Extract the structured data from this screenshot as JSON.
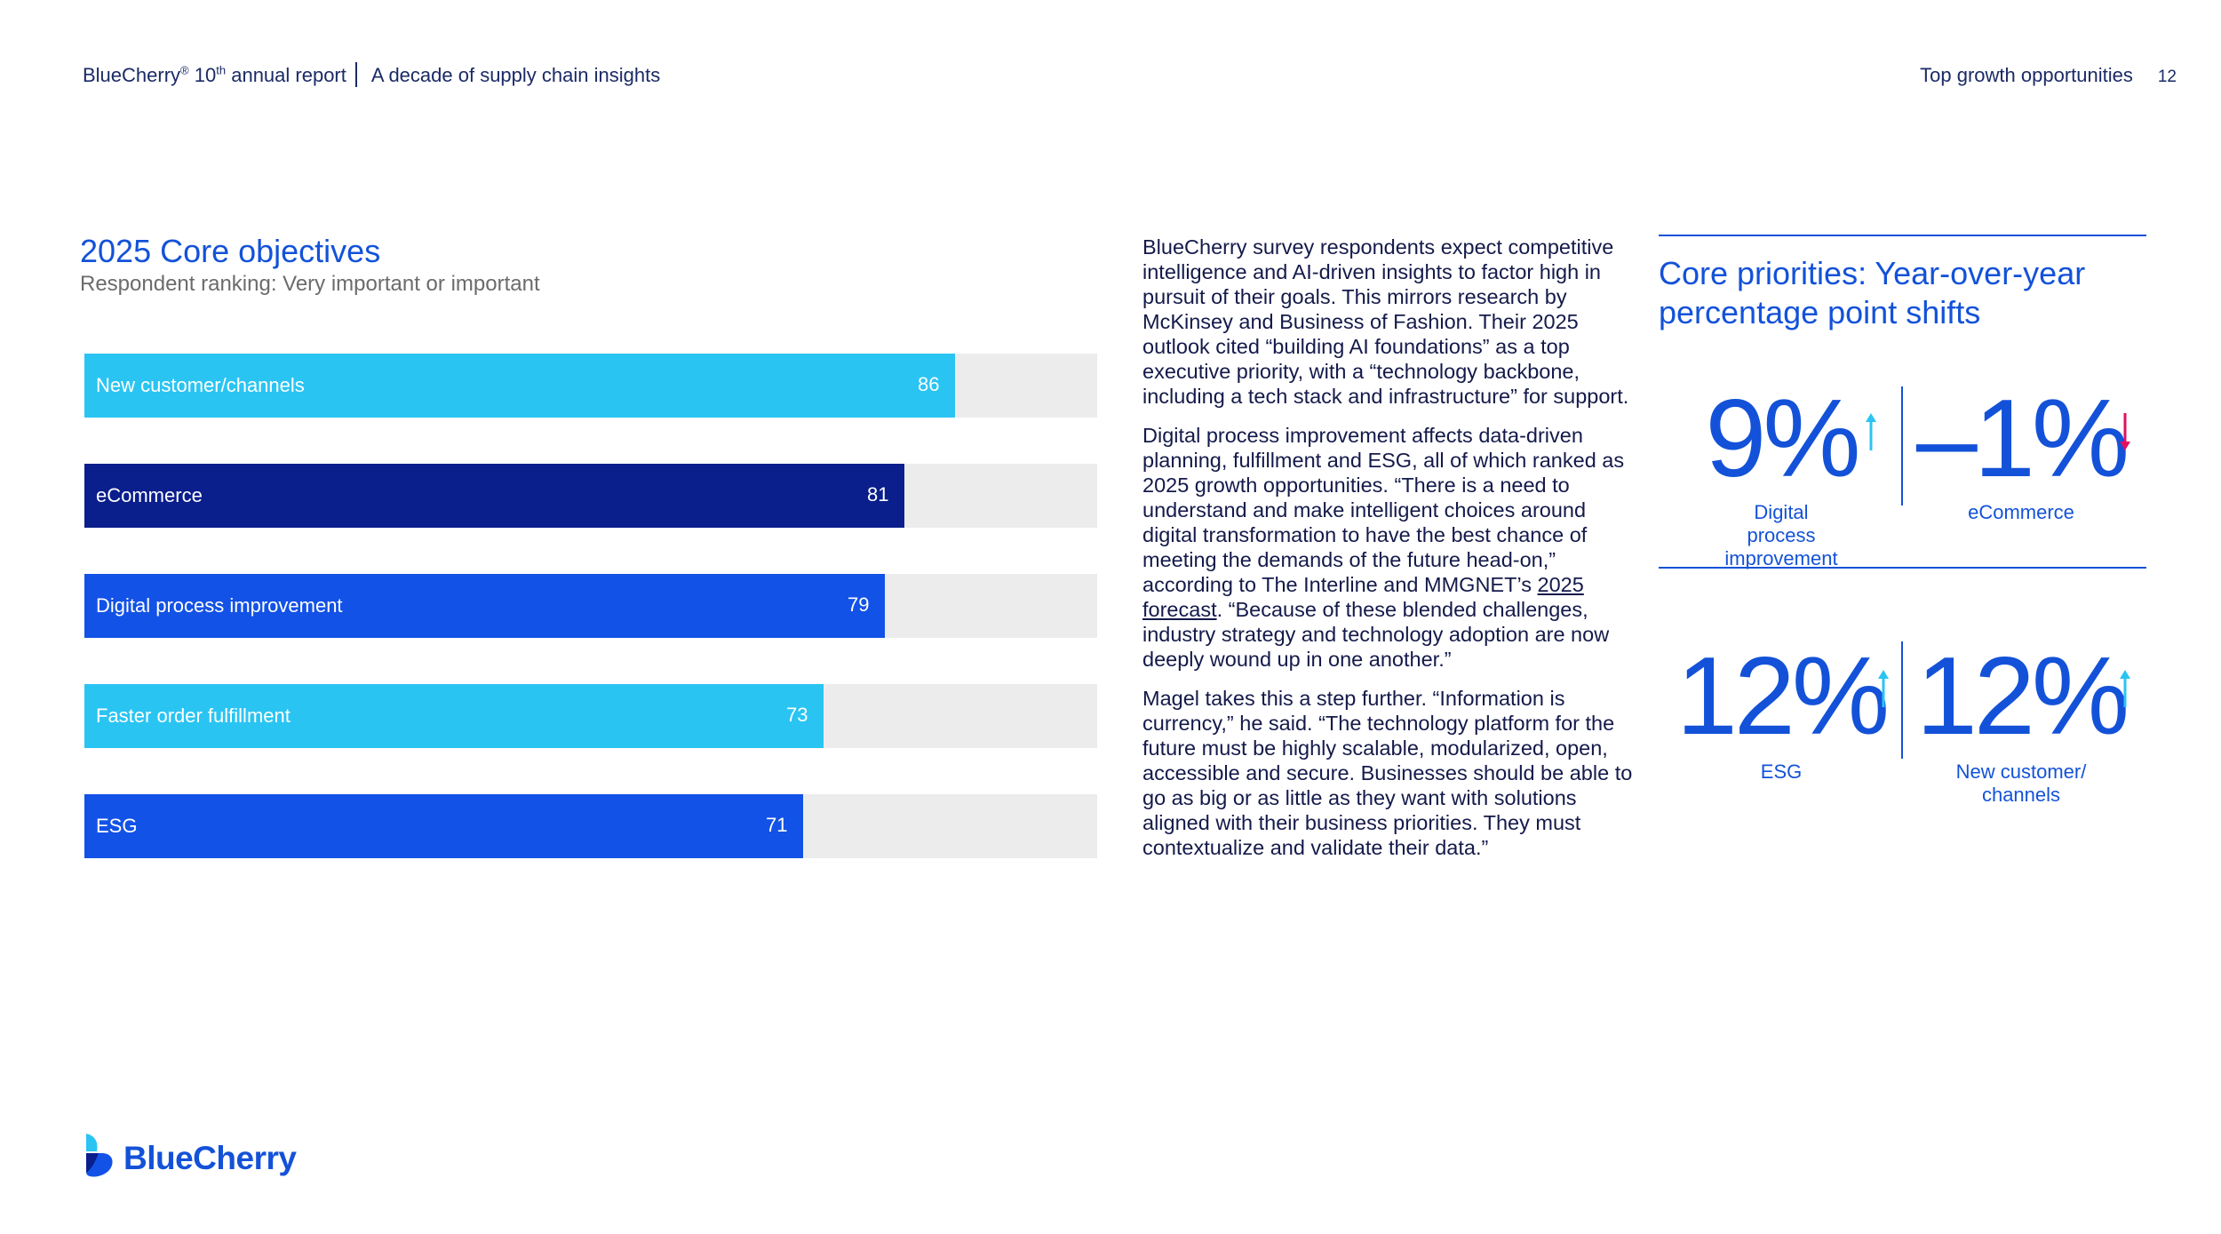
{
  "header": {
    "brand": "BlueCherry",
    "reg": "®",
    "edition_num": "10",
    "edition_sup": "th",
    "report_suffix": "annual report",
    "subtitle": "A decade of supply chain insights",
    "section": "Top growth opportunities",
    "page_number": "12"
  },
  "chart_data": {
    "type": "bar",
    "orientation": "horizontal",
    "title": "2025 Core objectives",
    "subtitle": "Respondent ranking: Very important or important",
    "categories": [
      "New customer/channels",
      "eCommerce",
      "Digital process improvement",
      "Faster order fulfillment",
      "ESG"
    ],
    "values": [
      86,
      81,
      79,
      73,
      71
    ],
    "xlim": [
      0,
      100
    ],
    "colors": [
      "#2ac4f2",
      "#0a1e8c",
      "#1352e6",
      "#2ac4f2",
      "#1352e6"
    ],
    "track_color": "#ececec",
    "grid": false,
    "legend": "none"
  },
  "body": {
    "p1": "BlueCherry survey respondents expect competitive intelligence and AI-driven insights to factor high in pursuit of their goals. This mirrors research by McKinsey and Business of Fashion. Their 2025 outlook cited “building AI foundations” as a top executive priority, with a “technology backbone, including a tech stack and infrastructure” for support.",
    "p2_pre": "Digital process improvement affects data-driven planning, fulfillment and ESG, all of which ranked as 2025 growth opportunities. “There is a need to understand and make intelligent choices around digital transformation to have the best chance of meeting the demands of the future head-on,” according to The Interline and MMGNET’s ",
    "p2_link": "2025 forecast",
    "p2_post": ". “Because of these blended challenges, industry strategy and technology adoption are now deeply wound up in one another.”",
    "p3": "Magel takes this a step further. “Information is currency,” he said. “The technology platform for the future must be highly scalable, modularized, open, accessible and secure. Businesses should be able to go as big or as little as they want with solutions aligned with their business priorities. They must contextualize and validate their data.”"
  },
  "priorities": {
    "title": "Core priorities: Year-over-year percentage point shifts",
    "stats": [
      {
        "value": "9%",
        "label": "Digital process improvement",
        "direction": "up",
        "arrow_color": "#2ac4f2"
      },
      {
        "value": "–1%",
        "label": "eCommerce",
        "direction": "down",
        "arrow_color": "#e0115f"
      },
      {
        "value": "12%",
        "label": "ESG",
        "direction": "up",
        "arrow_color": "#2ac4f2"
      },
      {
        "value": "12%",
        "label": "New customer/ channels",
        "direction": "up",
        "arrow_color": "#2ac4f2"
      }
    ]
  },
  "logo": {
    "text": "BlueCherry",
    "icon": "bluecherry-logo-icon"
  }
}
